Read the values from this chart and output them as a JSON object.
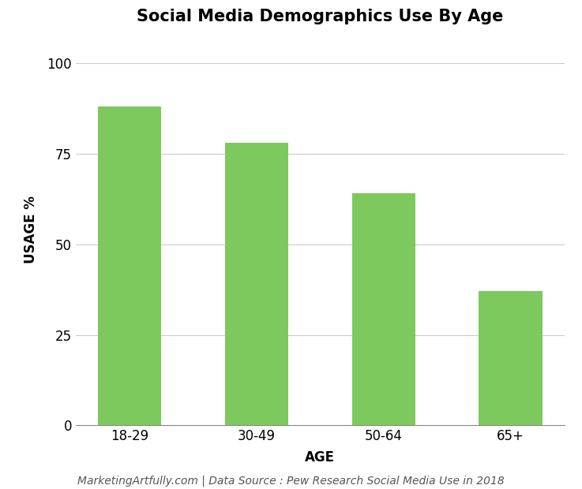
{
  "title": "Social Media Demographics Use By Age",
  "categories": [
    "18-29",
    "30-49",
    "50-64",
    "65+"
  ],
  "values": [
    88,
    78,
    64,
    37
  ],
  "bar_color": "#7DC95E",
  "xlabel": "AGE",
  "ylabel": "USAGE %",
  "ylim": [
    0,
    108
  ],
  "yticks": [
    0,
    25,
    50,
    75,
    100
  ],
  "background_color": "#ffffff",
  "footnote": "MarketingArtfully.com | Data Source : Pew Research Social Media Use in 2018",
  "title_fontsize": 15,
  "axis_label_fontsize": 12,
  "tick_fontsize": 12,
  "footnote_fontsize": 10,
  "bar_width": 0.5,
  "grid_color": "#cccccc",
  "grid_linewidth": 0.8
}
